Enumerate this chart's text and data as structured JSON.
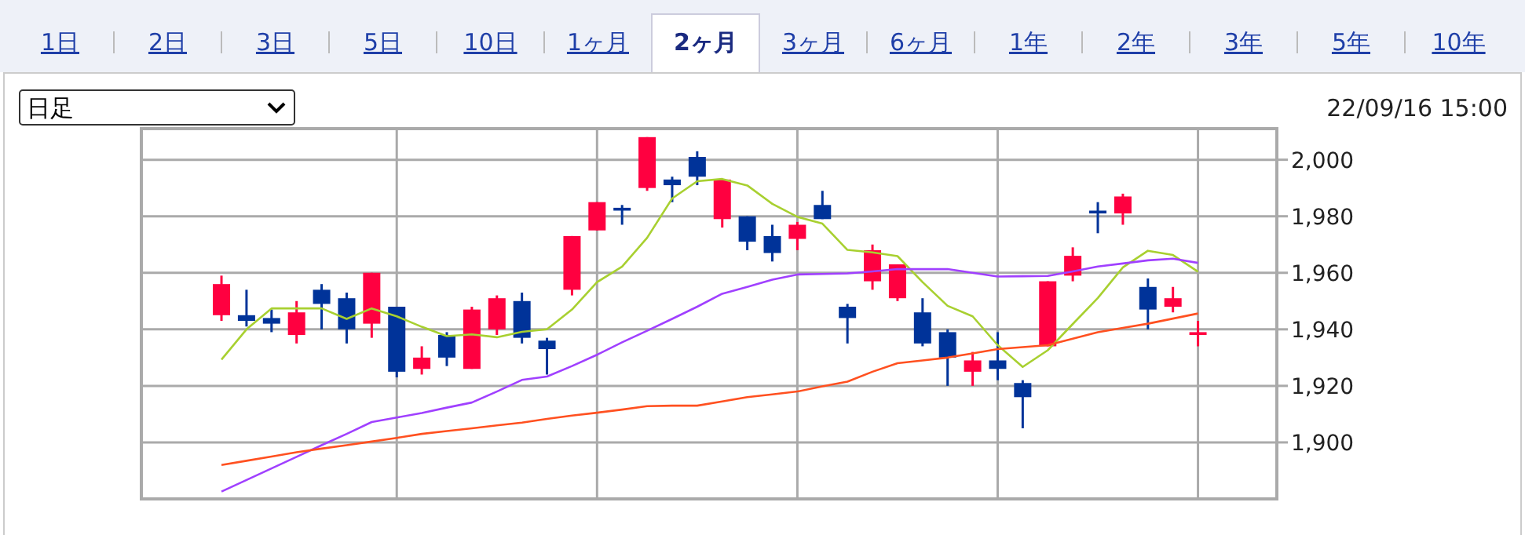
{
  "chart_data": {
    "type": "candlestick",
    "categories": [
      null,
      null,
      null,
      null,
      null,
      null,
      null,
      null,
      null,
      null,
      null,
      null,
      null,
      null,
      null,
      null,
      null,
      null,
      null,
      null,
      null,
      null,
      null,
      null,
      null,
      null,
      null,
      null,
      null,
      null,
      null,
      null,
      null,
      null,
      null,
      null,
      null,
      null,
      null,
      null
    ],
    "ohlc": [
      [
        1945,
        1959,
        1943,
        1956
      ],
      [
        1945,
        1954,
        1941,
        1943
      ],
      [
        1944,
        1947,
        1939,
        1942
      ],
      [
        1938,
        1950,
        1935,
        1946
      ],
      [
        1954,
        1956,
        1940,
        1949
      ],
      [
        1951,
        1953,
        1935,
        1940
      ],
      [
        1942,
        1960,
        1937,
        1960
      ],
      [
        1948,
        1948,
        1923,
        1925
      ],
      [
        1926,
        1934,
        1924,
        1930
      ],
      [
        1938,
        1939,
        1927,
        1930
      ],
      [
        1926,
        1948,
        1926,
        1947
      ],
      [
        1940,
        1952,
        1938,
        1951
      ],
      [
        1950,
        1953,
        1935,
        1937
      ],
      [
        1936,
        1937,
        1924,
        1933
      ],
      [
        1954,
        1973,
        1952,
        1973
      ],
      [
        1975,
        1985,
        1975,
        1985
      ],
      [
        1983,
        1984,
        1977,
        1982
      ],
      [
        1990,
        2008,
        1989,
        2008
      ],
      [
        1993,
        1994,
        1985,
        1991
      ],
      [
        2001,
        2003,
        1991,
        1994
      ],
      [
        1979,
        1993,
        1976,
        1993
      ],
      [
        1980,
        1980,
        1968,
        1971
      ],
      [
        1973,
        1977,
        1964,
        1967
      ],
      [
        1972,
        1978,
        1968,
        1977
      ],
      [
        1984,
        1989,
        1979,
        1979
      ],
      [
        1948,
        1949,
        1935,
        1944
      ],
      [
        1957,
        1970,
        1954,
        1968
      ],
      [
        1951,
        1963,
        1950,
        1963
      ],
      [
        1946,
        1951,
        1934,
        1935
      ],
      [
        1939,
        1940,
        1920,
        1930
      ],
      [
        1925,
        1932,
        1920,
        1929
      ],
      [
        1929,
        1939,
        1922,
        1926
      ],
      [
        1921,
        1922,
        1905,
        1916
      ],
      [
        1934,
        1957,
        1934,
        1957
      ],
      [
        1959,
        1969,
        1957,
        1966
      ],
      [
        1982,
        1985,
        1974,
        1981
      ],
      [
        1981,
        1988,
        1977,
        1987
      ],
      [
        1955,
        1958,
        1940,
        1947
      ],
      [
        1948,
        1955,
        1946,
        1951
      ],
      [
        1938,
        1943,
        1934,
        1939
      ]
    ],
    "colors": [
      "#ff0040",
      "#003399",
      "#003399",
      "#ff0040",
      "#003399",
      "#003399",
      "#ff0040",
      "#003399",
      "#ff0040",
      "#003399",
      "#ff0040",
      "#ff0040",
      "#003399",
      "#003399",
      "#ff0040",
      "#ff0040",
      "#003399",
      "#ff0040",
      "#003399",
      "#003399",
      "#ff0040",
      "#003399",
      "#003399",
      "#ff0040",
      "#003399",
      "#003399",
      "#ff0040",
      "#ff0040",
      "#003399",
      "#003399",
      "#ff0040",
      "#003399",
      "#003399",
      "#ff0040",
      "#ff0040",
      "#003399",
      "#ff0040",
      "#003399",
      "#ff0040",
      "#ff0040"
    ],
    "series": [
      {
        "type": "line",
        "color": "#a8d030",
        "values": [
          1929.3,
          1940,
          1947.4,
          1947.4,
          1947.4,
          1943.7,
          1947.4,
          1944.6,
          1940.9,
          1937.6,
          1938.2,
          1937.2,
          1939.1,
          1940,
          1947,
          1956.7,
          1962.2,
          1972.4,
          1986.3,
          1992.4,
          1993.2,
          1990.9,
          1984.4,
          1979.8,
          1977.4,
          1968.1,
          1967.2,
          1965.9,
          1956.7,
          1948.3,
          1944.6,
          1934.4,
          1926.7,
          1932.6,
          1941.9,
          1951.1,
          1961.9,
          1967.8,
          1966.3,
          1960.4
        ]
      },
      {
        "type": "line",
        "color": "#a040ff",
        "values": [
          1882.6,
          1886.7,
          1890.8,
          1894.9,
          1899,
          1903,
          1907.2,
          1908.8,
          1910.4,
          1912.3,
          1914.1,
          1918,
          1922.1,
          1923.3,
          1927,
          1931,
          1935.4,
          1939.5,
          1943.7,
          1948,
          1952.6,
          1955,
          1957.6,
          1959.4,
          1959.6,
          1959.8,
          1960.5,
          1961.3,
          1961.3,
          1961.3,
          1960,
          1958.7,
          1958.8,
          1958.9,
          1960.5,
          1962.2,
          1963.3,
          1964.4,
          1965,
          1963.5
        ]
      },
      {
        "type": "line",
        "color": "#ff5020",
        "values": [
          1892,
          1893.5,
          1895,
          1896.5,
          1897.8,
          1899,
          1900.3,
          1901.6,
          1903,
          1904,
          1905,
          1906,
          1907,
          1908.3,
          1909.5,
          1910.5,
          1911.6,
          1912.8,
          1913,
          1913,
          1914.5,
          1916,
          1917,
          1918,
          1919.8,
          1921.5,
          1925,
          1928,
          1929,
          1930,
          1931.5,
          1933,
          1933.7,
          1934.4,
          1936.7,
          1939,
          1940.5,
          1942,
          1943.8,
          1945.6
        ]
      }
    ],
    "ylim": [
      1880,
      2011
    ],
    "yticks": [
      {
        "value": 1900,
        "label": "1,900"
      },
      {
        "value": 1920,
        "label": "1,920"
      },
      {
        "value": 1940,
        "label": "1,940"
      },
      {
        "value": 1960,
        "label": "1,960"
      },
      {
        "value": 1980,
        "label": "1,980"
      },
      {
        "value": 2000,
        "label": "2,000"
      }
    ],
    "grid": true,
    "annotations": [
      "1日",
      "2日",
      "3日",
      "5日",
      "10日",
      "1ヶ月",
      "2ヶ月",
      "3ヶ月",
      "6ヶ月",
      "1年",
      "2年",
      "3年",
      "5年",
      "10年",
      "日足",
      "22/09/16 15:00"
    ]
  }
}
